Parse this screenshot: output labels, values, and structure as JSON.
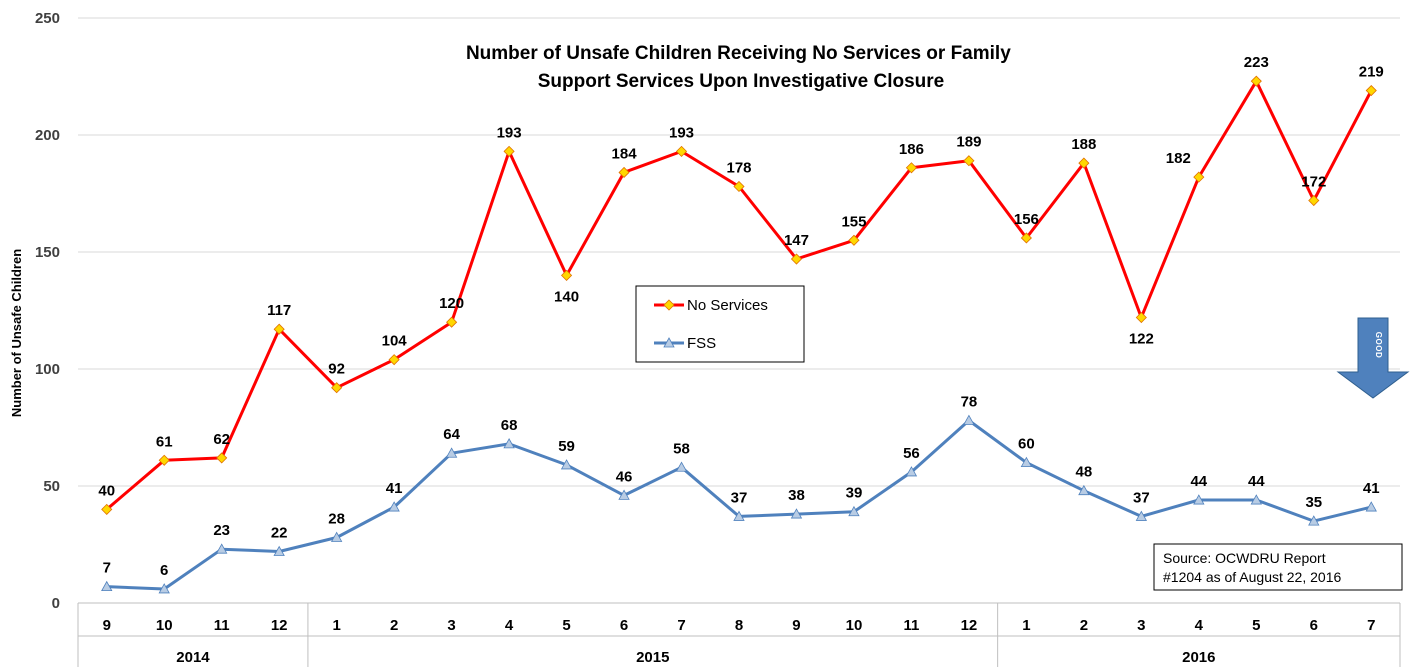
{
  "chart_data": {
    "type": "line",
    "title": [
      "Number of Unsafe Children Receiving No Services or Family",
      "Support Services Upon Investigative Closure"
    ],
    "ylabel": "Number of Unsafe Children",
    "xlabel": "",
    "ylim": [
      0,
      250
    ],
    "yticks": [
      0,
      50,
      100,
      150,
      200,
      250
    ],
    "grid": true,
    "legend_position": "center",
    "categories": [
      "9",
      "10",
      "11",
      "12",
      "1",
      "2",
      "3",
      "4",
      "5",
      "6",
      "7",
      "8",
      "9",
      "10",
      "11",
      "12",
      "1",
      "2",
      "3",
      "4",
      "5",
      "6",
      "7"
    ],
    "years": [
      {
        "label": "2014",
        "span": 4
      },
      {
        "label": "2015",
        "span": 12
      },
      {
        "label": "2016",
        "span": 7
      }
    ],
    "series": [
      {
        "name": "No Services",
        "color": "#ff0000",
        "marker_color": "#ffd700",
        "marker": "diamond",
        "values": [
          40,
          61,
          62,
          117,
          92,
          104,
          120,
          193,
          140,
          184,
          193,
          178,
          147,
          155,
          186,
          189,
          156,
          188,
          122,
          182,
          223,
          172,
          219
        ],
        "label_pos": [
          "above",
          "above",
          "above",
          "above",
          "above",
          "above",
          "above",
          "above",
          "below",
          "above",
          "above",
          "above",
          "above",
          "above",
          "above",
          "above",
          "above",
          "above",
          "below",
          "left",
          "above",
          "above",
          "above"
        ]
      },
      {
        "name": "FSS",
        "color": "#4f81bd",
        "marker_color": "#b8cce4",
        "marker": "triangle",
        "values": [
          7,
          6,
          23,
          22,
          28,
          41,
          64,
          68,
          59,
          46,
          58,
          37,
          38,
          39,
          56,
          78,
          60,
          48,
          37,
          44,
          44,
          35,
          41
        ],
        "label_pos": [
          "above",
          "above",
          "above",
          "above",
          "above",
          "above",
          "above",
          "above",
          "above",
          "above",
          "above",
          "above",
          "above",
          "above",
          "above",
          "above",
          "above",
          "above",
          "above",
          "above",
          "above",
          "above",
          "above"
        ]
      }
    ],
    "annotation": {
      "text": "GOOD",
      "icon": "down-arrow-icon",
      "color": "#4f81bd"
    },
    "source_note": [
      "Source: OCWDRU Report",
      "#1204 as of August 22, 2016"
    ]
  }
}
